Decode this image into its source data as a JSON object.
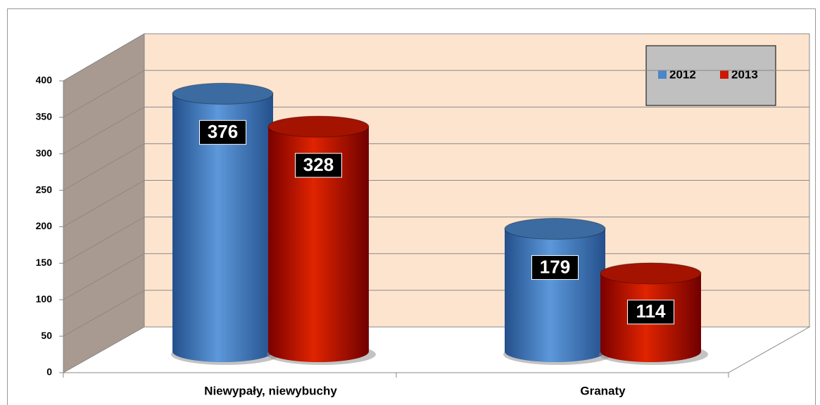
{
  "chart_data": {
    "type": "bar",
    "categories": [
      "Niewypały, niewybuchy",
      "Granaty"
    ],
    "series": [
      {
        "name": "2012",
        "color": "#4a86c8",
        "values": [
          376,
          179
        ]
      },
      {
        "name": "2013",
        "color": "#cc1800",
        "values": [
          328,
          114
        ]
      }
    ],
    "ylim": [
      0,
      400
    ],
    "yticks": [
      0,
      50,
      100,
      150,
      200,
      250,
      300,
      350,
      400
    ],
    "grid": true,
    "legend": "top-right"
  }
}
